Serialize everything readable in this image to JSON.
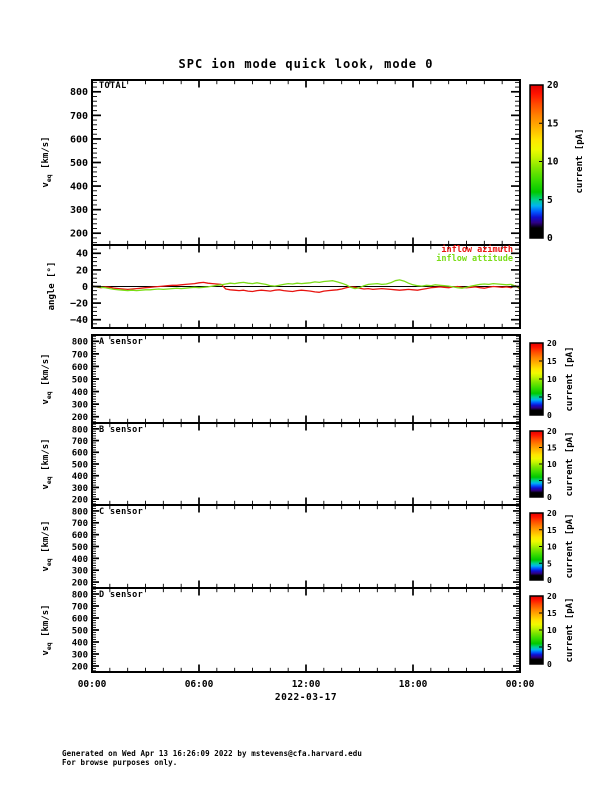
{
  "page": {
    "title": "SPC ion mode quick look, mode 0",
    "date_label": "2022-03-17",
    "footer_line1": "Generated on Wed Apr 13 16:26:09 2022 by mstevens@cfa.harvard.edu",
    "footer_line2": "For browse purposes only."
  },
  "colors": {
    "axis": "#000000",
    "trace_red": "#e81410",
    "trace_green": "#7bdd17"
  },
  "chart_data": {
    "type": "line",
    "title": "SPC ion mode quick look, mode 0",
    "x": {
      "range_hours": [
        0,
        24
      ],
      "date": "2022-03-17",
      "major_hours": [
        0,
        6,
        12,
        18,
        24
      ],
      "minor_step_hours": 1,
      "ticks": [
        {
          "hour": 0,
          "label": "00:00"
        },
        {
          "hour": 6,
          "label": "06:00"
        },
        {
          "hour": 12,
          "label": "12:00"
        },
        {
          "hour": 18,
          "label": "18:00"
        },
        {
          "hour": 24,
          "label": "00:00"
        }
      ]
    },
    "colorbar": {
      "label": "current [pA]",
      "lim": [
        0,
        20
      ],
      "ticks": [
        0,
        5,
        10,
        15,
        20
      ],
      "gradient_stops": [
        {
          "o": 0.0,
          "c": "#000000"
        },
        {
          "o": 0.065,
          "c": "#000000"
        },
        {
          "o": 0.1,
          "c": "#2e0084"
        },
        {
          "o": 0.135,
          "c": "#0f0fd0"
        },
        {
          "o": 0.17,
          "c": "#0055ff"
        },
        {
          "o": 0.21,
          "c": "#00b4f0"
        },
        {
          "o": 0.25,
          "c": "#00d28c"
        },
        {
          "o": 0.3,
          "c": "#00c800"
        },
        {
          "o": 0.38,
          "c": "#3cdc00"
        },
        {
          "o": 0.46,
          "c": "#82e600"
        },
        {
          "o": 0.53,
          "c": "#c8f500"
        },
        {
          "o": 0.58,
          "c": "#f0fa00"
        },
        {
          "o": 0.64,
          "c": "#ffe600"
        },
        {
          "o": 0.72,
          "c": "#ffb400"
        },
        {
          "o": 0.8,
          "c": "#ff8200"
        },
        {
          "o": 0.875,
          "c": "#ff4b00"
        },
        {
          "o": 0.94,
          "c": "#ff1400"
        },
        {
          "o": 1.0,
          "c": "#e10000"
        }
      ]
    },
    "panels": [
      {
        "key": "total",
        "label": "TOTAL",
        "ylabel": {
          "pre": "v",
          "sub": "eq",
          "post": " [km/s]"
        },
        "ylim": [
          150,
          850
        ],
        "yticks": [
          200,
          300,
          400,
          500,
          600,
          700,
          800
        ],
        "minor_step": 20,
        "colorbar": true,
        "zeroline": false,
        "series": []
      },
      {
        "key": "angle",
        "label": "",
        "ylabel": {
          "pre": "angle [°]",
          "sub": "",
          "post": ""
        },
        "ylim": [
          -50,
          50
        ],
        "yticks": [
          -40,
          -20,
          0,
          20,
          40
        ],
        "minor_step": 5,
        "colorbar": false,
        "zeroline": true,
        "legend": [
          {
            "name": "inflow azimuth",
            "color": "#e81410"
          },
          {
            "name": "inflow attitude",
            "color": "#7bdd17"
          }
        ],
        "series": [
          {
            "name": "inflow azimuth",
            "color": "#e81410",
            "step_hours": 0.25,
            "values": [
              1,
              -0.5,
              -1.5,
              -0.5,
              -1,
              -2,
              -2.5,
              -3,
              -3.5,
              -3,
              -2.5,
              -2,
              -1.5,
              -1,
              -0.5,
              0,
              0.5,
              1,
              1.5,
              1.5,
              2,
              2.5,
              3,
              3.5,
              4.5,
              5,
              4,
              3.5,
              3,
              2.5,
              -3,
              -4,
              -4.5,
              -5,
              -4.5,
              -5.5,
              -6,
              -5,
              -4.5,
              -5,
              -5.5,
              -4.5,
              -4,
              -5,
              -5.5,
              -6,
              -5,
              -4.5,
              -5,
              -5.5,
              -6.5,
              -7,
              -5.5,
              -5,
              -4.5,
              -4,
              -3,
              -1.5,
              -0.5,
              -1,
              -2,
              -3,
              -2.5,
              -3.5,
              -3,
              -2.5,
              -3,
              -3.5,
              -4,
              -4.5,
              -4,
              -3.5,
              -4,
              -4.5,
              -3.5,
              -2.5,
              -1.5,
              -1,
              -0.5,
              -1,
              -1.5,
              -0.5,
              0,
              -1,
              -1.5,
              -1,
              -0.5,
              -1.5,
              -2,
              -1,
              0,
              -0.5,
              -1,
              -0.5,
              -1.5,
              1,
              -3
            ]
          },
          {
            "name": "inflow attitude",
            "color": "#7bdd17",
            "step_hours": 0.25,
            "values": [
              0.5,
              -0.5,
              -1,
              -1.5,
              -2.5,
              -3.5,
              -4,
              -4.5,
              -5,
              -4.5,
              -5,
              -4.5,
              -4,
              -4,
              -3.5,
              -3,
              -3.5,
              -3,
              -2.5,
              -2,
              -2.5,
              -2,
              -1.5,
              -1,
              -1.5,
              -1,
              -0.5,
              0.5,
              1.5,
              2,
              3,
              4,
              3.5,
              4.5,
              5,
              4,
              3.5,
              4.5,
              3.5,
              2.5,
              1,
              0.5,
              1.5,
              2.5,
              3.5,
              3,
              4,
              3.5,
              4,
              4.5,
              5.5,
              5,
              6,
              6.5,
              7,
              5.5,
              4,
              2,
              -1,
              -2.5,
              -1.5,
              1,
              2.5,
              3,
              3.5,
              2.5,
              3,
              4.5,
              7,
              8,
              6.5,
              4,
              2,
              1,
              0.5,
              1.5,
              1,
              2,
              1.5,
              1,
              0.5,
              -0.5,
              -1.5,
              -2,
              -1,
              0.5,
              1.5,
              2.5,
              3,
              2.5,
              3.5,
              3,
              2.5,
              2,
              2.5,
              0.5,
              -2
            ]
          }
        ]
      },
      {
        "key": "a",
        "label": "A sensor",
        "ylabel": {
          "pre": "v",
          "sub": "eq",
          "post": " [km/s]"
        },
        "ylim": [
          150,
          850
        ],
        "yticks": [
          200,
          300,
          400,
          500,
          600,
          700,
          800
        ],
        "minor_step": 20,
        "colorbar": true,
        "zeroline": false,
        "series": []
      },
      {
        "key": "b",
        "label": "B sensor",
        "ylabel": {
          "pre": "v",
          "sub": "eq",
          "post": " [km/s]"
        },
        "ylim": [
          150,
          850
        ],
        "yticks": [
          200,
          300,
          400,
          500,
          600,
          700,
          800
        ],
        "minor_step": 20,
        "colorbar": true,
        "zeroline": false,
        "series": []
      },
      {
        "key": "c",
        "label": "C sensor",
        "ylabel": {
          "pre": "v",
          "sub": "eq",
          "post": " [km/s]"
        },
        "ylim": [
          150,
          850
        ],
        "yticks": [
          200,
          300,
          400,
          500,
          600,
          700,
          800
        ],
        "minor_step": 20,
        "colorbar": true,
        "zeroline": false,
        "series": []
      },
      {
        "key": "d",
        "label": "D sensor",
        "ylabel": {
          "pre": "v",
          "sub": "eq",
          "post": " [km/s]"
        },
        "ylim": [
          150,
          850
        ],
        "yticks": [
          200,
          300,
          400,
          500,
          600,
          700,
          800
        ],
        "minor_step": 20,
        "colorbar": true,
        "zeroline": false,
        "series": []
      }
    ]
  }
}
